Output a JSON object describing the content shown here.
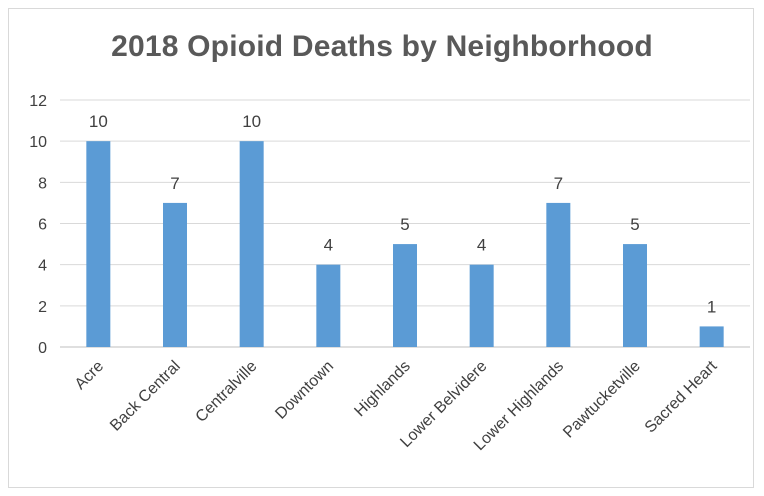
{
  "chart_data": {
    "type": "bar",
    "title": "2018 Opioid  Deaths by Neighborhood",
    "xlabel": "",
    "ylabel": "",
    "ylim": [
      0,
      12
    ],
    "yticks": [
      0,
      2,
      4,
      6,
      8,
      10,
      12
    ],
    "grid": true,
    "legend": "none",
    "bar_color": "#5b9bd5",
    "categories": [
      "Acre",
      "Back Central",
      "Centralville",
      "Downtown",
      "Highlands",
      "Lower Belvidere",
      "Lower Highlands",
      "Pawtucketville",
      "Sacred Heart"
    ],
    "values": [
      10,
      7,
      10,
      4,
      5,
      4,
      7,
      5,
      1
    ],
    "data_labels": [
      "10",
      "7",
      "10",
      "4",
      "5",
      "4",
      "7",
      "5",
      "1"
    ]
  }
}
